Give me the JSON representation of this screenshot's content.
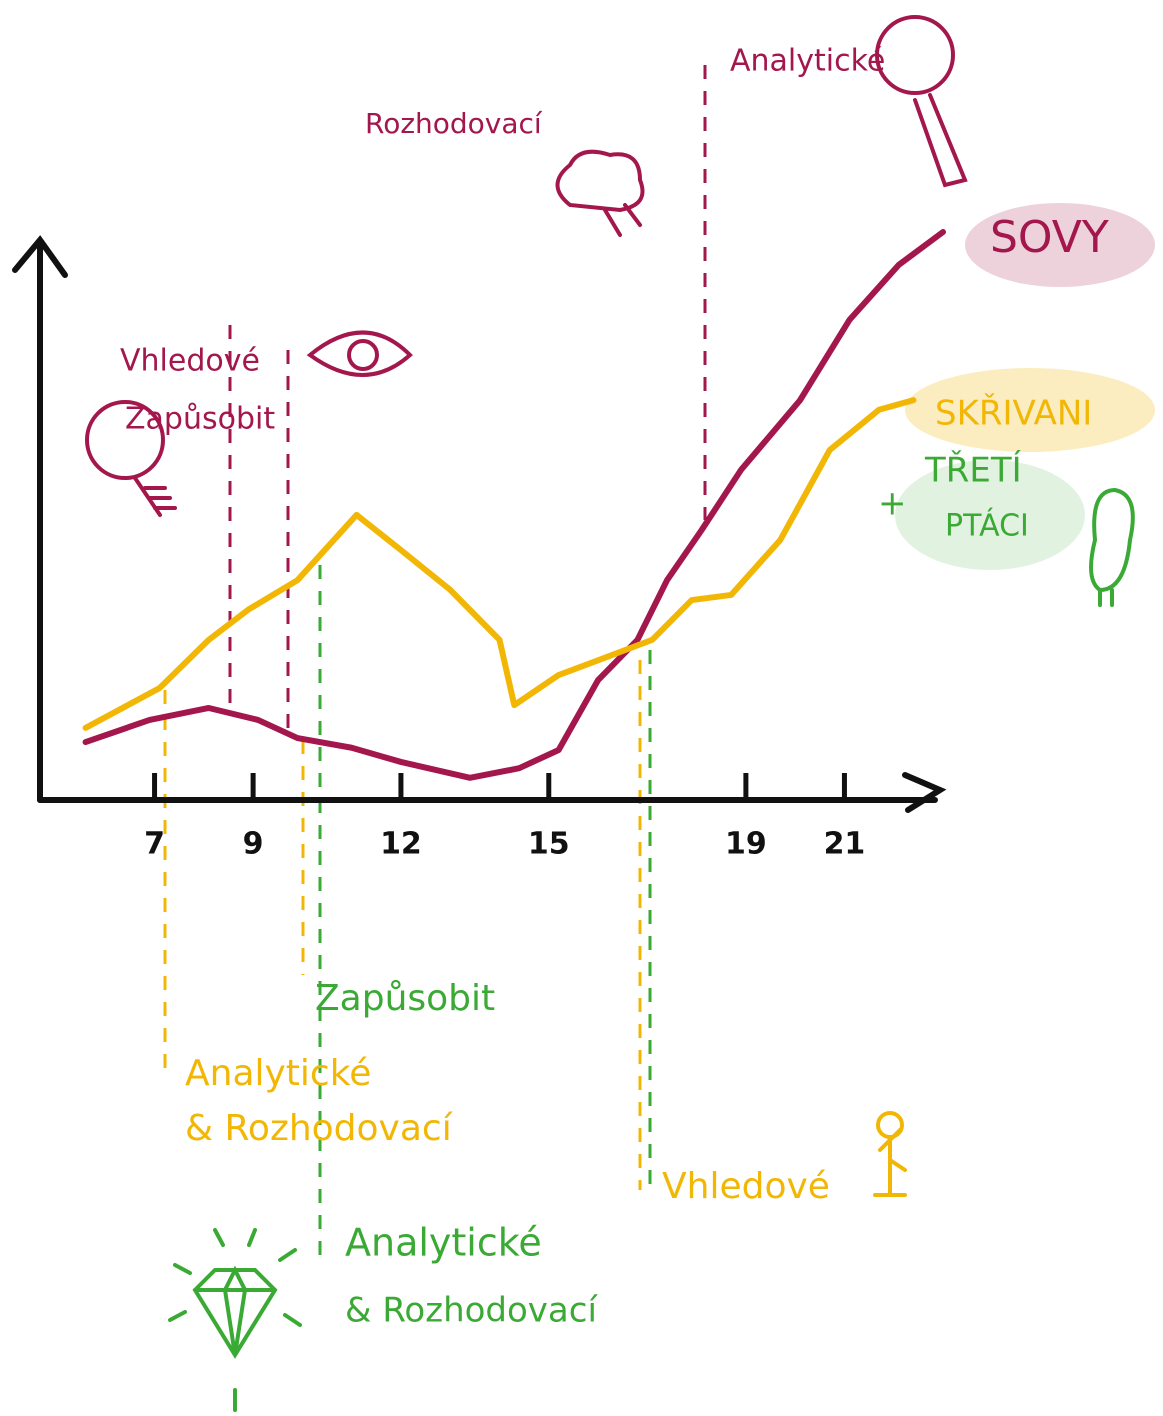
{
  "chart_data": {
    "type": "line",
    "xlim": [
      5,
      23
    ],
    "xticks": [
      7,
      9,
      12,
      15,
      19,
      21
    ],
    "ylim": [
      0,
      100
    ],
    "series": [
      {
        "name": "SOVY",
        "color": "#a3174d",
        "x": [
          5.6,
          6.9,
          8.1,
          9.1,
          9.9,
          11.0,
          12.0,
          13.4,
          14.4,
          15.2,
          16.0,
          16.8,
          17.4,
          18.1,
          18.9,
          20.1,
          21.1,
          22.1,
          23.0
        ],
        "values": [
          10.2,
          14.1,
          16.2,
          14.1,
          10.9,
          9.2,
          6.7,
          3.9,
          5.6,
          8.8,
          21.1,
          28.2,
          38.7,
          47.5,
          58.1,
          70.4,
          84.5,
          94.2,
          100
        ]
      },
      {
        "name": "SKŘIVANI",
        "color": "#f2b705",
        "x": [
          5.6,
          7.1,
          8.1,
          8.9,
          9.9,
          11.1,
          12.0,
          13.0,
          14.0,
          14.3,
          15.2,
          16.0,
          17.1,
          17.9,
          18.7,
          19.7,
          20.7,
          21.7,
          22.4
        ],
        "values": [
          12.7,
          19.7,
          28.2,
          33.5,
          38.7,
          50.2,
          44.0,
          37.0,
          28.2,
          16.7,
          22.0,
          24.6,
          28.2,
          35.2,
          36.1,
          45.8,
          61.6,
          68.7,
          70.4
        ]
      }
    ],
    "annotations": [
      {
        "text": "Analytické",
        "color": "#a3174d"
      },
      {
        "text": "Rozhodovací",
        "color": "#a3174d"
      },
      {
        "text": "Vhledové",
        "color": "#a3174d"
      },
      {
        "text": "Zapůsobit",
        "color": "#a3174d"
      },
      {
        "text": "Zapůsobit",
        "color": "#3aaa35"
      },
      {
        "text": "Analytické",
        "color": "#f2b705"
      },
      {
        "text": "& Rozhodovací",
        "color": "#f2b705"
      },
      {
        "text": "Vhledové",
        "color": "#f2b705"
      },
      {
        "text": "Analytické",
        "color": "#3aaa35"
      },
      {
        "text": "& Rozhodovací",
        "color": "#3aaa35"
      },
      {
        "text": "+",
        "color": "#3aaa35"
      },
      {
        "text": "TŘETÍ",
        "color": "#3aaa35"
      },
      {
        "text": "PTÁCI",
        "color": "#3aaa35"
      }
    ]
  }
}
